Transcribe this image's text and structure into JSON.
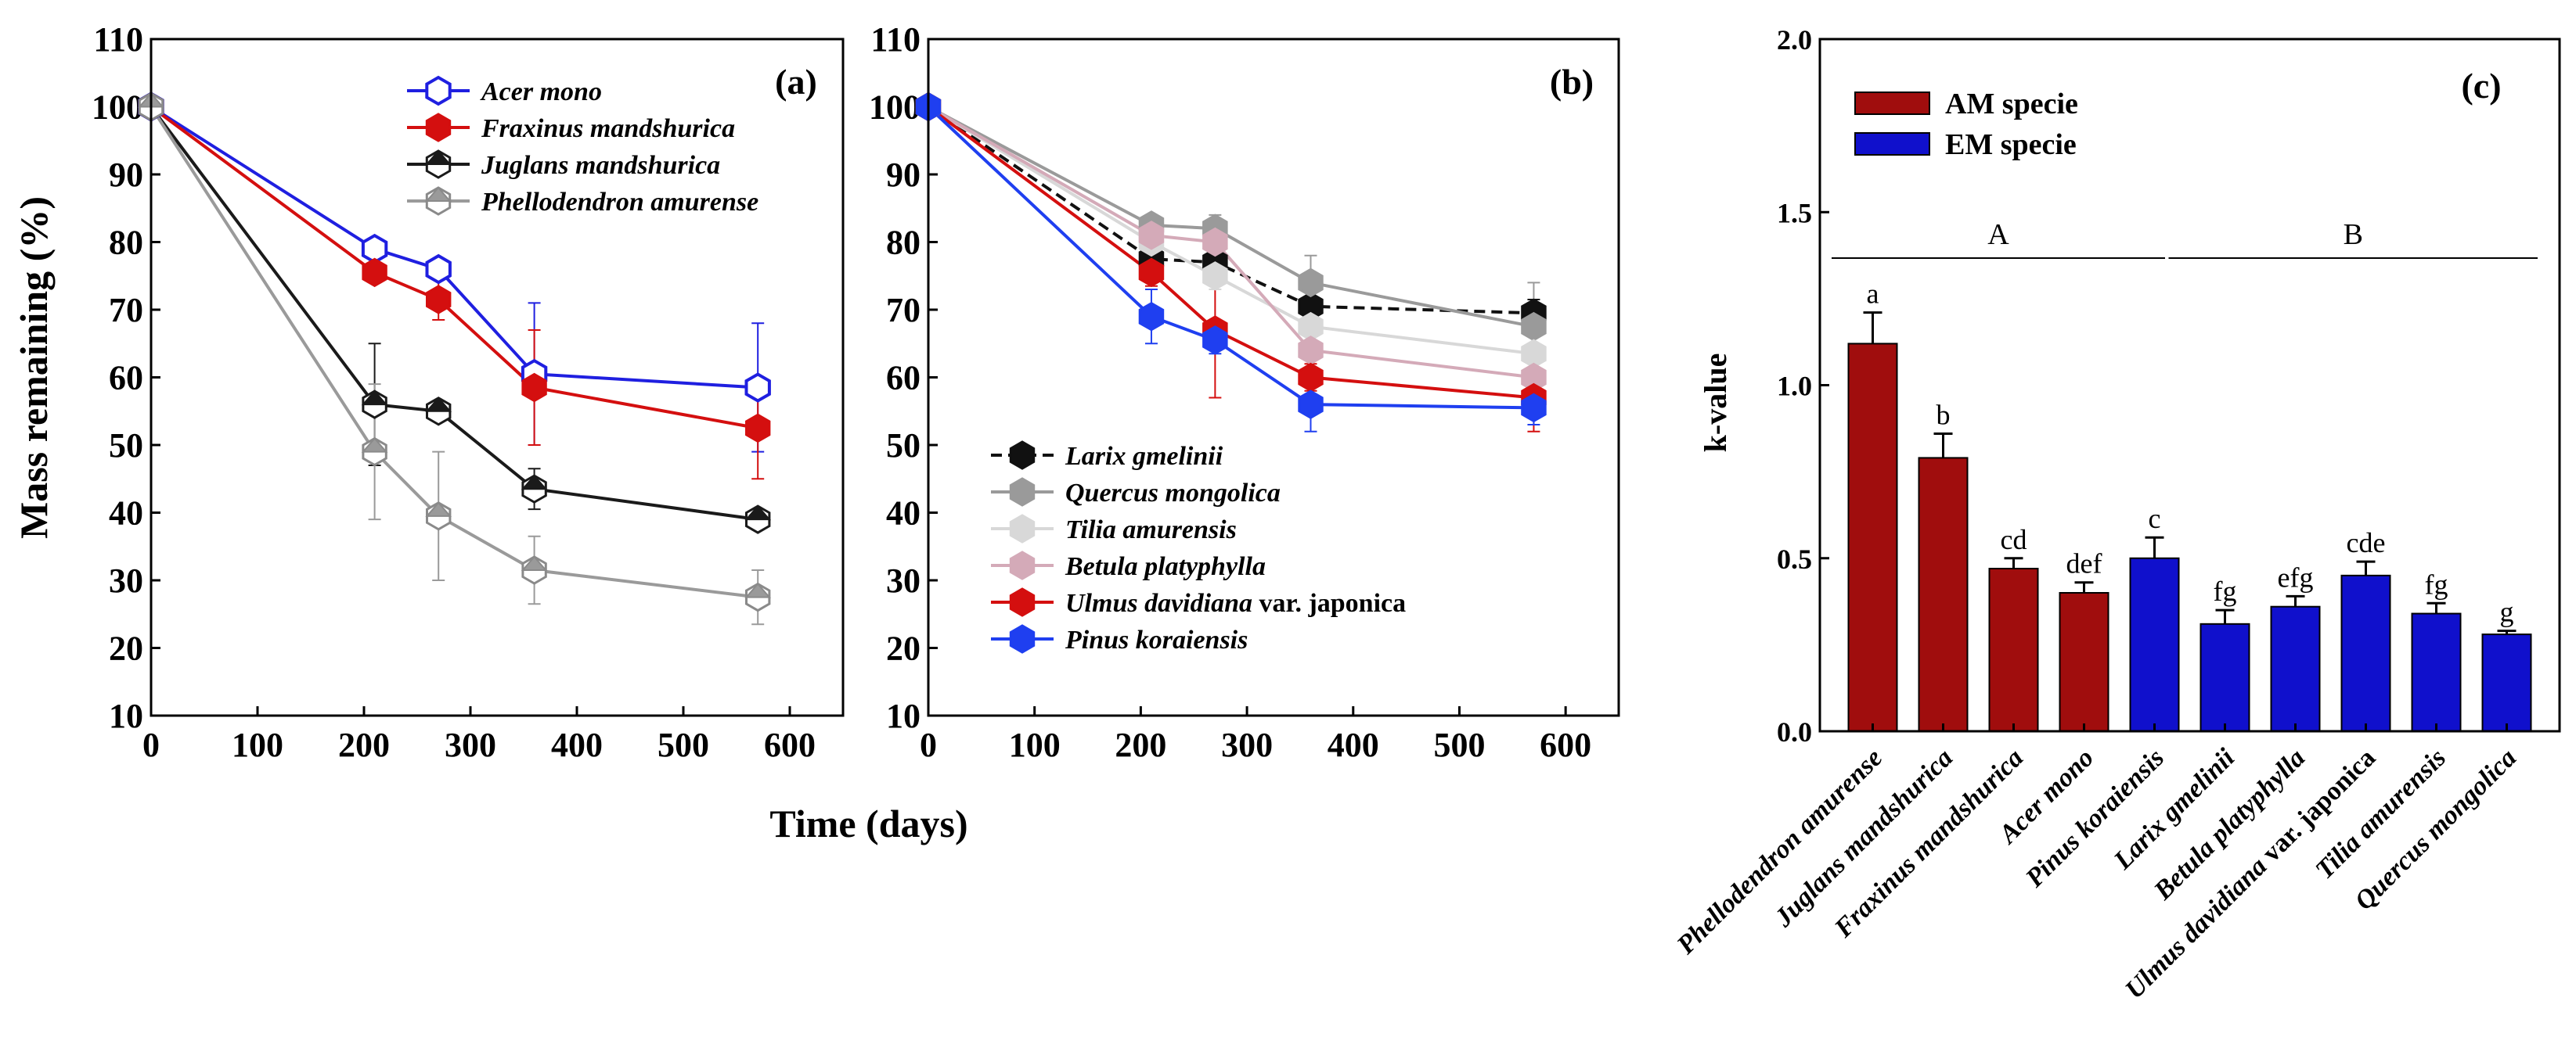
{
  "shared": {
    "y_label": "Mass remaining (%)",
    "x_label": "Time (days)"
  },
  "chart_data": [
    {
      "panel": "(a)",
      "type": "line",
      "xlim": [
        0,
        650
      ],
      "ylim": [
        10,
        110
      ],
      "x_ticks": [
        0,
        100,
        200,
        300,
        400,
        500,
        600
      ],
      "y_ticks": [
        10,
        20,
        30,
        40,
        50,
        60,
        70,
        80,
        90,
        100,
        110
      ],
      "legend_position": "top-right",
      "series": [
        {
          "name": "Acer mono",
          "color": "#1f1fe0",
          "marker": "hex-open",
          "x": [
            0,
            210,
            270,
            360,
            570
          ],
          "y": [
            100,
            79,
            76,
            60.5,
            58.5
          ],
          "err": [
            0,
            1.5,
            1.5,
            10.5,
            9.5
          ]
        },
        {
          "name": "Fraxinus mandshurica",
          "color": "#d40f0f",
          "marker": "hex-filled",
          "x": [
            0,
            210,
            270,
            360,
            570
          ],
          "y": [
            100,
            75.5,
            71.5,
            58.5,
            52.5
          ],
          "err": [
            0,
            1.5,
            3,
            8.5,
            7.5
          ]
        },
        {
          "name": "Juglans mandshurica",
          "color": "#1a1a1a",
          "marker": "hex-half",
          "x": [
            0,
            210,
            270,
            360,
            570
          ],
          "y": [
            100,
            56,
            55,
            43.5,
            39
          ],
          "err": [
            0,
            9,
            1.5,
            3,
            1.5
          ]
        },
        {
          "name": "Phellodendron amurense",
          "color": "#9a9a9a",
          "marker": "hex-half-gray",
          "x": [
            0,
            210,
            270,
            360,
            570
          ],
          "y": [
            100,
            49,
            39.5,
            31.5,
            27.5
          ],
          "err": [
            0,
            10,
            9.5,
            5,
            4
          ]
        }
      ]
    },
    {
      "panel": "(b)",
      "type": "line",
      "xlim": [
        0,
        650
      ],
      "ylim": [
        10,
        110
      ],
      "x_ticks": [
        0,
        100,
        200,
        300,
        400,
        500,
        600
      ],
      "y_ticks": [
        10,
        20,
        30,
        40,
        50,
        60,
        70,
        80,
        90,
        100,
        110
      ],
      "legend_position": "bottom-left",
      "series": [
        {
          "name": "Larix gmelinii",
          "label_suffix": "",
          "color": "#111111",
          "marker": "hex-filled",
          "dashed": true,
          "x": [
            0,
            210,
            270,
            360,
            570
          ],
          "y": [
            100,
            77.5,
            77,
            70.5,
            69.5
          ],
          "err": [
            0,
            2,
            2,
            2,
            2
          ]
        },
        {
          "name": "Quercus mongolica",
          "label_suffix": "",
          "color": "#9a9a9a",
          "marker": "hex-filled",
          "x": [
            0,
            210,
            270,
            360,
            570
          ],
          "y": [
            100,
            82.5,
            82,
            74,
            67.5
          ],
          "err": [
            0,
            1.5,
            2,
            4,
            6.5
          ]
        },
        {
          "name": "Tilia amurensis",
          "label_suffix": "",
          "color": "#d8d8d8",
          "marker": "hex-filled",
          "x": [
            0,
            210,
            270,
            360,
            570
          ],
          "y": [
            100,
            80,
            75,
            67.5,
            63.5
          ],
          "err": [
            0,
            2,
            2,
            2.5,
            2.5
          ]
        },
        {
          "name": "Betula platyphylla",
          "label_suffix": "",
          "color": "#d4aab8",
          "marker": "hex-filled",
          "x": [
            0,
            210,
            270,
            360,
            570
          ],
          "y": [
            100,
            81,
            80,
            64,
            60
          ],
          "err": [
            0,
            2,
            2,
            3,
            2
          ]
        },
        {
          "name": "Ulmus davidiana",
          "label_suffix": " var. japonica",
          "color": "#d40f0f",
          "marker": "hex-filled",
          "x": [
            0,
            210,
            270,
            360,
            570
          ],
          "y": [
            100,
            75.5,
            67,
            60,
            57
          ],
          "err": [
            0,
            2,
            10,
            2,
            5
          ]
        },
        {
          "name": "Pinus koraiensis",
          "label_suffix": "",
          "color": "#1f3ff0",
          "marker": "hex-filled",
          "x": [
            0,
            210,
            270,
            360,
            570
          ],
          "y": [
            100,
            69,
            65.5,
            56,
            55.5
          ],
          "err": [
            0,
            4,
            2,
            4,
            2.5
          ]
        }
      ]
    },
    {
      "panel": "(c)",
      "type": "bar",
      "ylabel": "k-value",
      "ylim": [
        0,
        2.0
      ],
      "y_ticks": [
        "0.0",
        "0.5",
        "1.0",
        "1.5",
        "2.0"
      ],
      "legend_position": "top-left",
      "legend": [
        {
          "label": "AM specie",
          "color": "#a00d0d"
        },
        {
          "label": "EM specie",
          "color": "#1010cc"
        }
      ],
      "groups": [
        {
          "label": "A",
          "from": 0,
          "to": 4
        },
        {
          "label": "B",
          "from": 4,
          "to": 9
        }
      ],
      "categories": [
        {
          "name": "Phellodendron amurense",
          "suffix": ""
        },
        {
          "name": "Juglans mandshurica",
          "suffix": ""
        },
        {
          "name": "Fraxinus mandshurica",
          "suffix": ""
        },
        {
          "name": "Acer mono",
          "suffix": ""
        },
        {
          "name": "Pinus koraiensis",
          "suffix": ""
        },
        {
          "name": "Larix gmelinii",
          "suffix": ""
        },
        {
          "name": "Betula platyphylla",
          "suffix": ""
        },
        {
          "name": "Ulmus davidiana",
          "suffix": " var. japonica"
        },
        {
          "name": "Tilia amurensis",
          "suffix": ""
        },
        {
          "name": "Quercus mongolica",
          "suffix": ""
        }
      ],
      "values": [
        1.12,
        0.79,
        0.47,
        0.4,
        0.5,
        0.31,
        0.36,
        0.45,
        0.34,
        0.28
      ],
      "errors": [
        0.09,
        0.07,
        0.03,
        0.03,
        0.06,
        0.04,
        0.03,
        0.04,
        0.03,
        0.01
      ],
      "type_group": [
        "AM",
        "AM",
        "AM",
        "AM",
        "EM",
        "EM",
        "EM",
        "EM",
        "EM",
        "EM"
      ],
      "letters": [
        "a",
        "b",
        "cd",
        "def",
        "c",
        "fg",
        "efg",
        "cde",
        "fg",
        "g"
      ]
    }
  ]
}
